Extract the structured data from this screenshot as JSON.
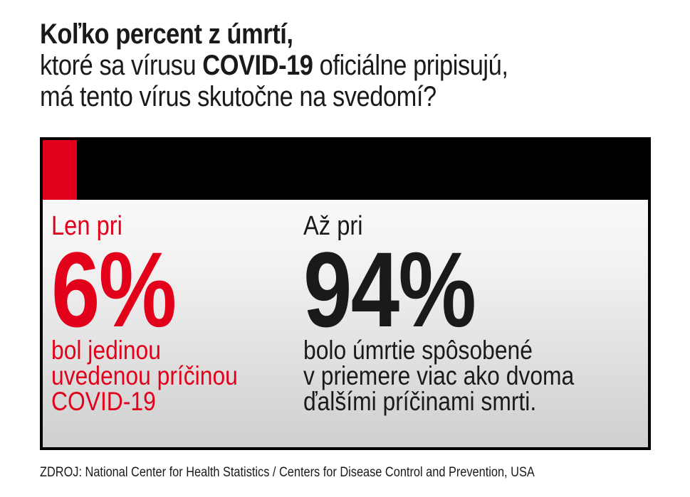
{
  "title": {
    "line1": "Koľko percent z úmrtí,",
    "line2_pre": "ktoré sa vírusu ",
    "line2_bold": "COVID-19",
    "line2_post": " oficiálne pripisujú,",
    "line3": "má tento vírus skutočne na svedomí?"
  },
  "left": {
    "lead": "Len pri",
    "value": "6%",
    "desc": [
      "bol jedinou",
      "uvedenou príčinou",
      "COVID-19"
    ]
  },
  "right": {
    "lead": "Až pri",
    "value": "94%",
    "desc": [
      "bolo úmrtie spôsobené",
      "v priemere viac ako dvoma",
      "ďalšími príčinami smrti."
    ]
  },
  "source": "ZDROJ: National Center for Health Statistics / Centers for Disease Control and Prevention, USA",
  "colors": {
    "accent": "#e3001b",
    "text": "#1a1a1a",
    "bar": "#000000"
  }
}
